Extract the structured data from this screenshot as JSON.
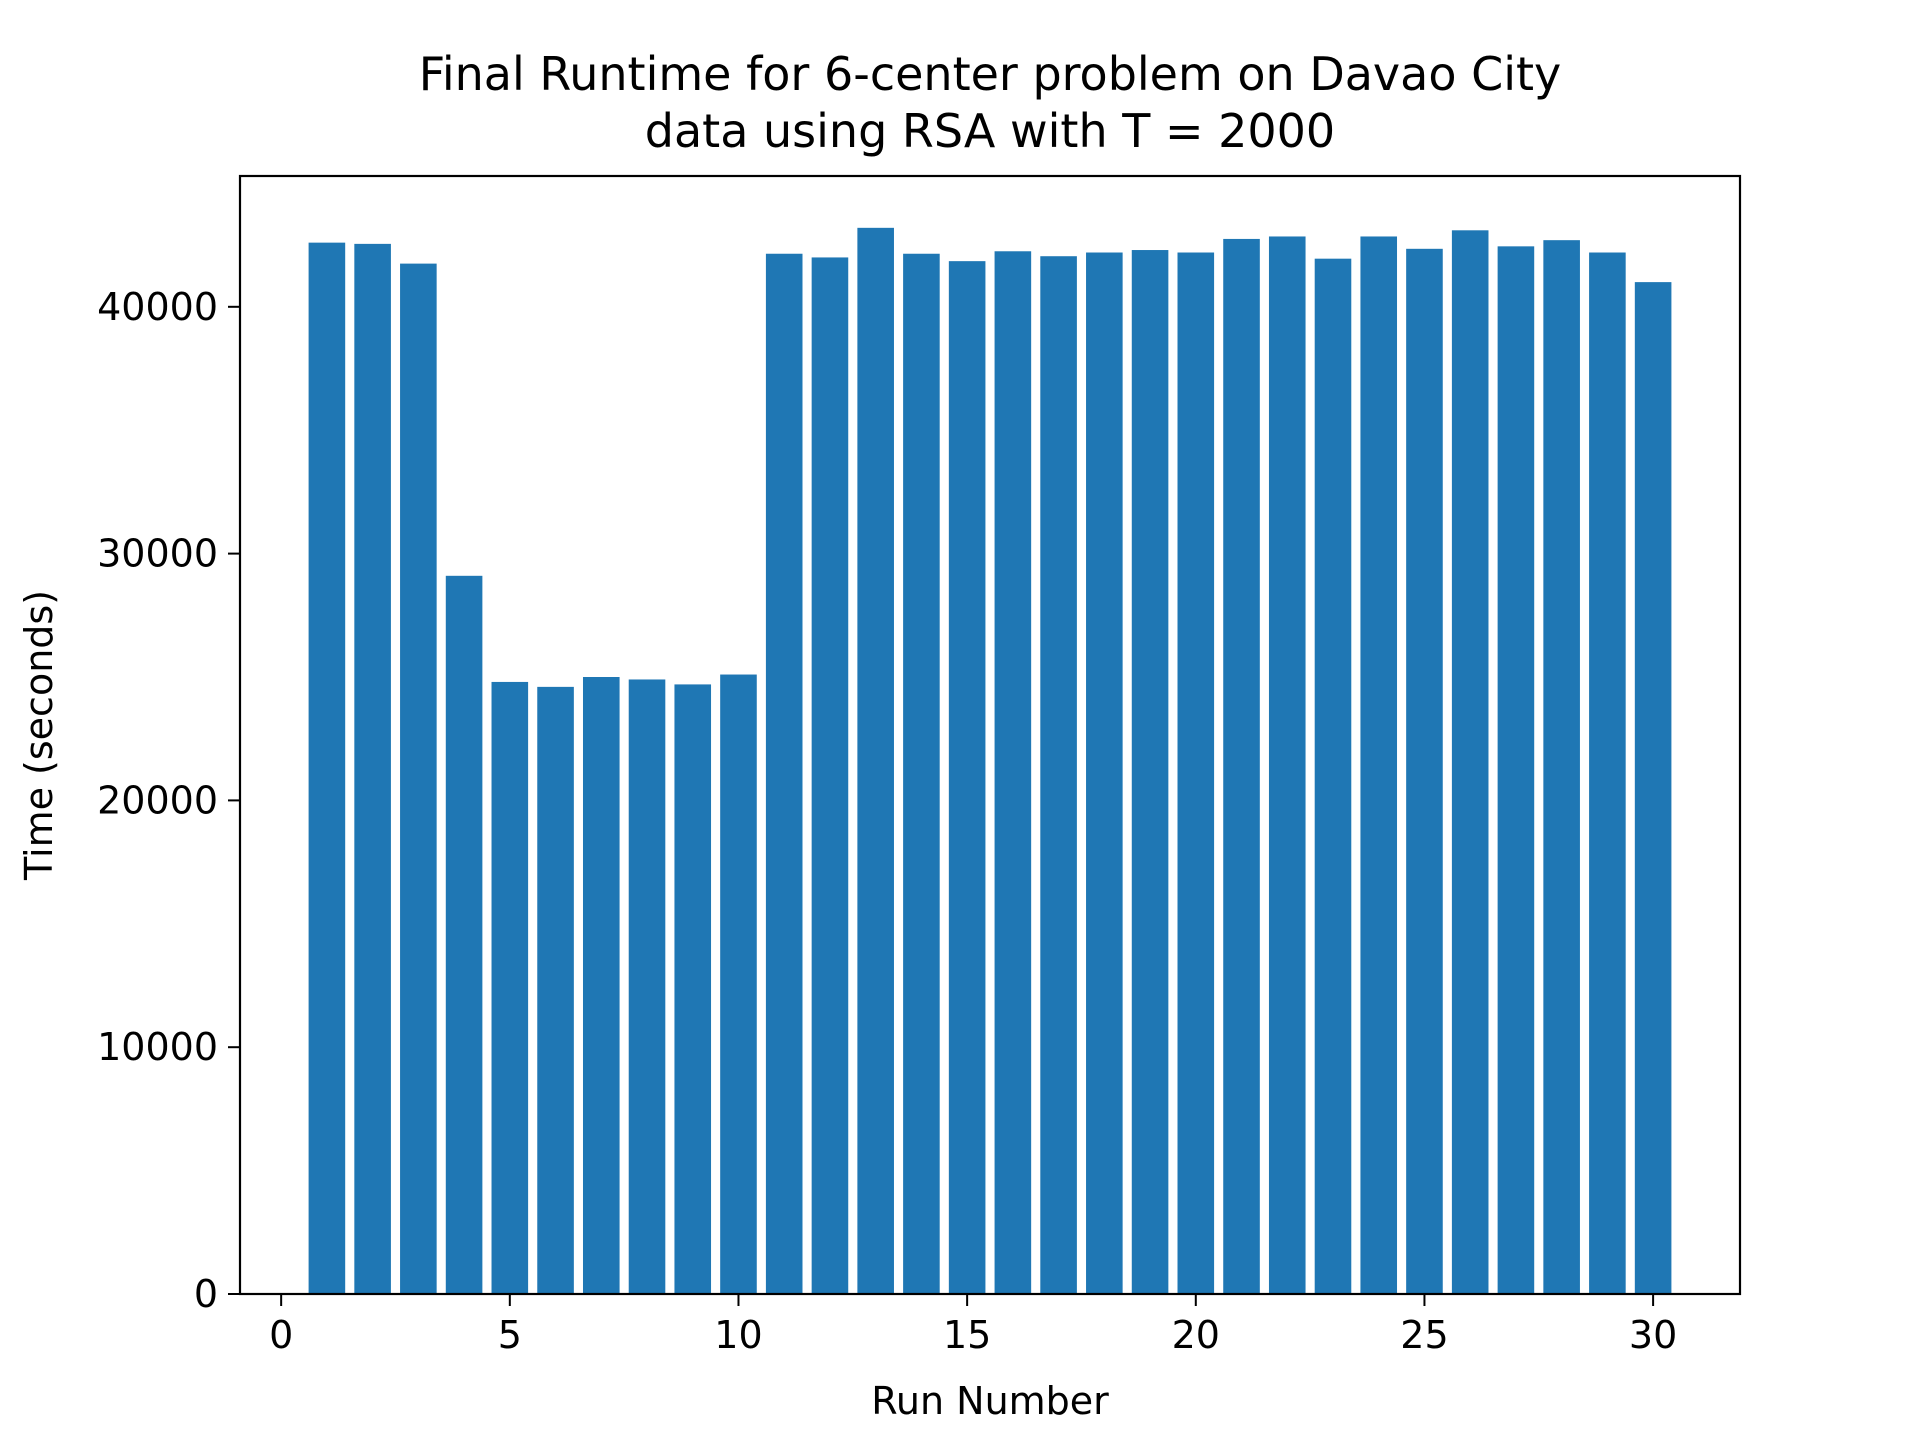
{
  "chart_data": {
    "type": "bar",
    "title_lines": [
      "Final Runtime for 6-center problem on Davao City",
      "data using RSA with T = 2000"
    ],
    "xlabel": "Run Number",
    "ylabel": "Time (seconds)",
    "x": [
      1,
      2,
      3,
      4,
      5,
      6,
      7,
      8,
      9,
      10,
      11,
      12,
      13,
      14,
      15,
      16,
      17,
      18,
      19,
      20,
      21,
      22,
      23,
      24,
      25,
      26,
      27,
      28,
      29,
      30
    ],
    "values": [
      42600,
      42550,
      41750,
      29100,
      24800,
      24600,
      25000,
      24900,
      24700,
      25100,
      42150,
      42000,
      43200,
      42150,
      41850,
      42250,
      42050,
      42200,
      42300,
      42200,
      42750,
      42850,
      41950,
      42850,
      42350,
      43100,
      42450,
      42700,
      42200,
      41000
    ],
    "xlim": [
      -0.9,
      31.9
    ],
    "ylim": [
      0,
      45300
    ],
    "xticks": [
      "0",
      "5",
      "10",
      "15",
      "20",
      "25",
      "30"
    ],
    "yticks": [
      "0",
      "10000",
      "20000",
      "30000",
      "40000"
    ],
    "bar_color": "#1f77b4",
    "grid": false,
    "legend": "none"
  }
}
